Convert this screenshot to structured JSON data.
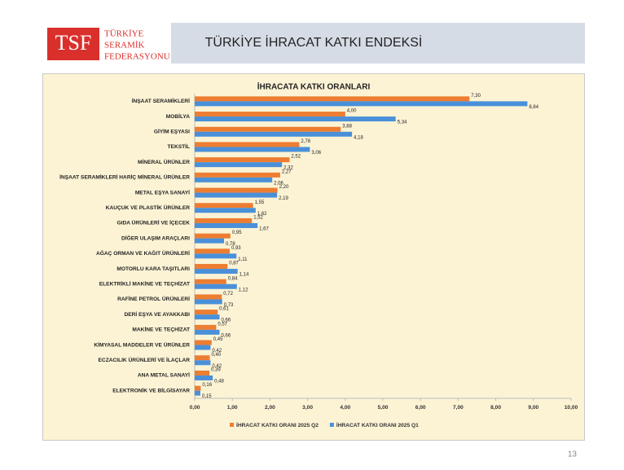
{
  "header": {
    "logo_mark": "TSF",
    "logo_lines": [
      "TÜRKİYE",
      "SERAMİK",
      "FEDERASYONU"
    ],
    "title": "TÜRKİYE İHRACAT KATKI ENDEKSİ"
  },
  "chart_data": {
    "type": "hbar",
    "title": "İHRACATA KATKI ORANLARI",
    "categories": [
      "İNŞAAT SERAMİKLERİ",
      "MOBİLYA",
      "GİYİM EŞYASI",
      "TEKSTİL",
      "MİNERAL ÜRÜNLER",
      "İNŞAAT SERAMİKLERİ HARİÇ MİNERAL ÜRÜNLER",
      "METAL EŞYA SANAYİ",
      "KAUÇUK VE PLASTİK ÜRÜNLER",
      "GIDA ÜRÜNLERİ VE İÇECEK",
      "DİĞER ULAŞIM ARAÇLARI",
      "AĞAÇ ORMAN VE KAĞIT ÜRÜNLERİ",
      "MOTORLU KARA TAŞITLARI",
      "ELEKTRİKLİ MAKİNE VE TEÇHİZAT",
      "RAFİNE PETROL ÜRÜNLERİ",
      "DERİ EŞYA VE AYAKKABI",
      "MAKİNE VE TEÇHİZAT",
      "KİMYASAL MADDELER VE ÜRÜNLER",
      "ECZACILIK ÜRÜNLERİ VE İLAÇLAR",
      "ANA METAL SANAYİ",
      "ELEKTRONİK VE BİLGİSAYAR"
    ],
    "series": [
      {
        "name": "İHRACAT KATKI ORANI 2025 Q2",
        "color": "#ed7d31",
        "values": [
          7.3,
          4.0,
          3.88,
          2.78,
          2.52,
          2.27,
          2.2,
          1.55,
          1.52,
          0.95,
          0.93,
          0.87,
          0.84,
          0.72,
          0.61,
          0.57,
          0.45,
          0.4,
          0.39,
          0.16
        ],
        "value_labels": [
          "7,30",
          "4,00",
          "3,88",
          "2,78",
          "2,52",
          "2,27",
          "2,20",
          "1,55",
          "1,52",
          "0,95",
          "0,93",
          "0,87",
          "0,84",
          "0,72",
          "0,61",
          "0,57",
          "0,45",
          "0,40",
          "0,39",
          "0,16"
        ]
      },
      {
        "name": "İHRACAT KATKI ORANI 2025 Q1",
        "color": "#4a90d9",
        "values": [
          8.84,
          5.34,
          4.18,
          3.06,
          2.32,
          2.06,
          2.19,
          1.62,
          1.67,
          0.78,
          1.11,
          1.14,
          1.12,
          0.73,
          0.66,
          0.66,
          0.42,
          0.42,
          0.48,
          0.15
        ],
        "value_labels": [
          "8,84",
          "5,34",
          "4,18",
          "3,06",
          "2,32",
          "2,06",
          "2,19",
          "1,62",
          "1,67",
          "0,78",
          "1,11",
          "1,14",
          "1,12",
          "0,73",
          "0,66",
          "0,66",
          "0,42",
          "0,42",
          "0,48",
          "0,15"
        ]
      }
    ],
    "xlim": [
      0,
      10
    ],
    "xticks": [
      {
        "value": 0,
        "label": "0,00"
      },
      {
        "value": 1,
        "label": "1,00"
      },
      {
        "value": 2,
        "label": "2,00"
      },
      {
        "value": 3,
        "label": "3,00"
      },
      {
        "value": 4,
        "label": "4,00"
      },
      {
        "value": 5,
        "label": "5,00"
      },
      {
        "value": 6,
        "label": "6,00"
      },
      {
        "value": 7,
        "label": "7,00"
      },
      {
        "value": 8,
        "label": "8,00"
      },
      {
        "value": 9,
        "label": "9,00"
      },
      {
        "value": 10,
        "label": "10,00"
      }
    ],
    "legend": "bottom"
  },
  "page_number": "13"
}
